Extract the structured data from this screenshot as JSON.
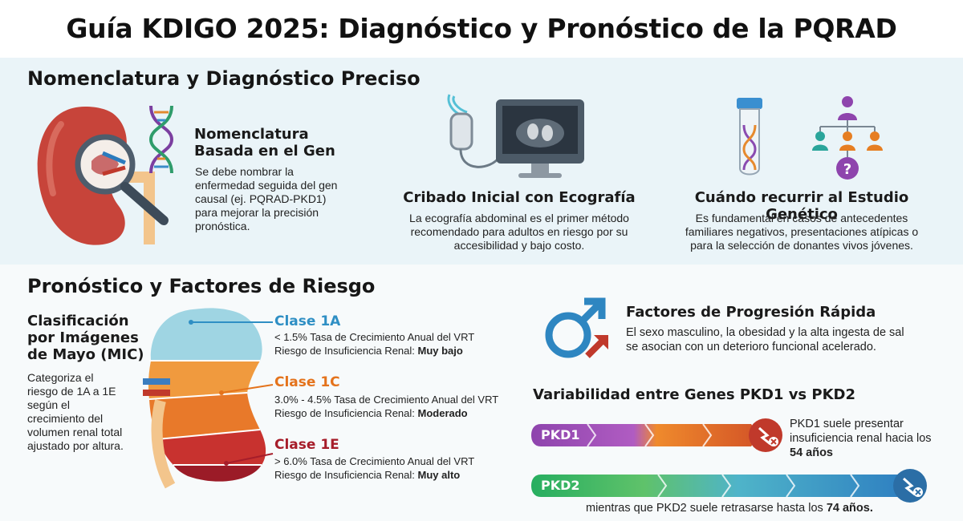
{
  "title": "Guía KDIGO 2025: Diagnóstico y Pronóstico de la PQRAD",
  "diagnosis": {
    "heading": "Nomenclatura y Diagnóstico Preciso",
    "gene_nomenclature": {
      "title_line1": "Nomenclatura",
      "title_line2": "Basada en el Gen",
      "text_lines": [
        "Se debe nombrar la",
        "enfermedad seguida del gen",
        "causal (ej. PQRAD-PKD1)",
        "para mejorar la precisión",
        "pronóstica."
      ]
    },
    "ultrasound": {
      "title": "Cribado Inicial con Ecografía",
      "text_lines": [
        "La ecografía abdominal es el primer método",
        "recomendado para adultos en riesgo por su",
        "accesibilidad y bajo costo."
      ]
    },
    "genetic_testing": {
      "title": "Cuándo recurrir al Estudio Genético",
      "text_lines": [
        "Es fundamental en casos de antecedentes",
        "familiares negativos, presentaciones atípicas o",
        "para la selección de donantes vivos jóvenes."
      ],
      "question_mark": "?"
    }
  },
  "prognosis": {
    "heading": "Pronóstico y Factores de Riesgo",
    "mayo": {
      "title_lines": [
        "Clasificación",
        "por Imágenes",
        "de Mayo (MIC)"
      ],
      "text_lines": [
        "Categoriza el",
        "riesgo de 1A a 1E",
        "según el",
        "crecimiento del",
        "volumen renal total",
        "ajustado por altura."
      ]
    },
    "classes": [
      {
        "label": "Clase 1A",
        "growth": "< 1.5% Tasa de Crecimiento Anual del VRT",
        "risk_prefix": "Riesgo de Insuficiencia Renal: ",
        "risk": "Muy bajo",
        "color": "#2f8fc4"
      },
      {
        "label": "Clase 1C",
        "growth": "3.0% - 4.5% Tasa de Crecimiento Anual del VRT",
        "risk_prefix": "Riesgo de Insuficiencia Renal: ",
        "risk": "Moderado",
        "color": "#e4731c"
      },
      {
        "label": "Clase 1E",
        "growth": "> 6.0% Tasa de Crecimiento Anual del VRT",
        "risk_prefix": "Riesgo de Insuficiencia Renal: ",
        "risk": "Muy alto",
        "color": "#a61d2a"
      }
    ],
    "rapid_progression": {
      "title": "Factores de Progresión Rápida",
      "text_lines": [
        "El sexo masculino, la obesidad y la alta ingesta de sal",
        "se asocian con un deterioro funcional acelerado."
      ]
    },
    "variability": {
      "title": "Variabilidad entre Genes PKD1 vs PKD2",
      "pkd1": {
        "label": "PKD1",
        "note_lines": [
          "PKD1 suele presentar",
          "insuficiencia renal hacia los"
        ],
        "age": "54 años"
      },
      "pkd2": {
        "label": "PKD2",
        "note_prefix": "mientras que PKD2 suele retrasarse hasta los ",
        "age": "74 años."
      }
    }
  },
  "colors": {
    "kidney_red": "#c0392b",
    "class_1a": "#8ecfe0",
    "class_1c": "#ef8a2c",
    "class_1e": "#a61d2a",
    "pkd1_purple": "#8e44ad",
    "pkd2_green": "#27ae60",
    "male_blue": "#2e86c1"
  }
}
